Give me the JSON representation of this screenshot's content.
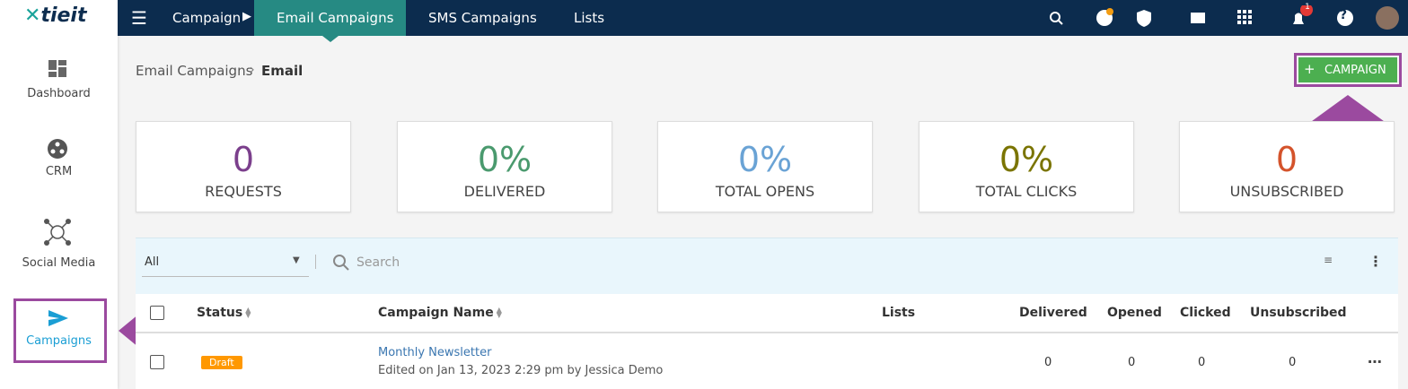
{
  "logo": "tieit",
  "topbar": {
    "nav": [
      "Campaign",
      "Email Campaigns",
      "SMS Campaigns",
      "Lists"
    ],
    "notification_count": "1"
  },
  "sidebar": {
    "items": [
      "Dashboard",
      "CRM",
      "Social Media",
      "Campaigns"
    ]
  },
  "breadcrumb": [
    "Email Campaigns",
    "Email"
  ],
  "button": {
    "icon": "+",
    "label": "CAMPAIGN"
  },
  "stats": [
    {
      "value": "0",
      "label": "REQUESTS",
      "color": "#7b3f8c"
    },
    {
      "value": "0%",
      "label": "DELIVERED",
      "color": "#4a9a6e"
    },
    {
      "value": "0%",
      "label": "TOTAL OPENS",
      "color": "#6aa3d5"
    },
    {
      "value": "0%",
      "label": "TOTAL CLICKS",
      "color": "#7a7400"
    },
    {
      "value": "0",
      "label": "UNSUBSCRIBED",
      "color": "#d4532b"
    }
  ],
  "filter": {
    "select": "All",
    "search_placeholder": "Search"
  },
  "table": {
    "headers": [
      "Status",
      "Campaign Name",
      "Lists",
      "Delivered",
      "Opened",
      "Clicked",
      "Unsubscribed"
    ],
    "rows": [
      {
        "status": "Draft",
        "name": "Monthly Newsletter",
        "edited": "Edited on Jan 13, 2023 2:29 pm by Jessica Demo",
        "delivered": "0",
        "opened": "0",
        "clicked": "0",
        "unsubscribed": "0"
      }
    ]
  }
}
